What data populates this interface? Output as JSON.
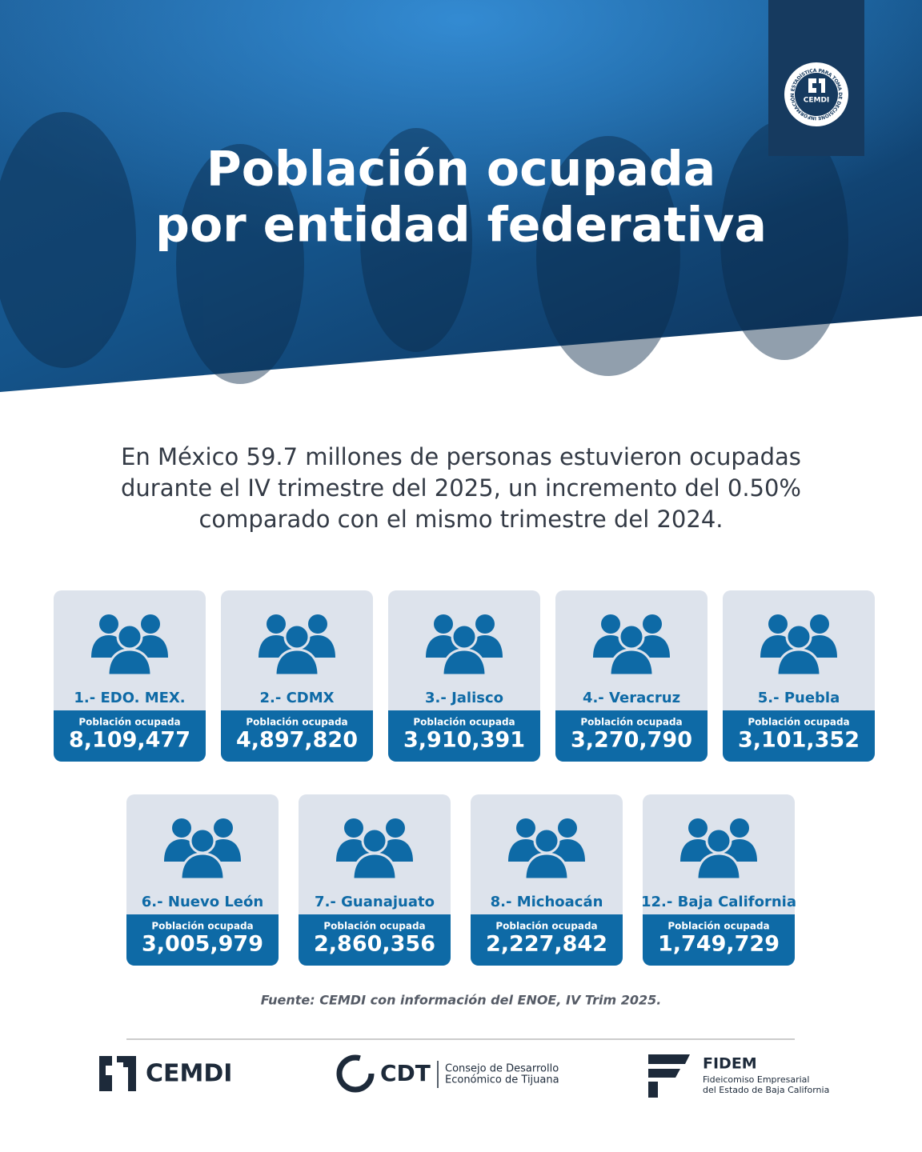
{
  "header": {
    "title_line1": "Población ocupada",
    "title_line2": "por entidad federativa",
    "badge_name": "CEMDI",
    "badge_ring": "INFORMACIÓN ESTADÍSTICA PARA TOMA DE DECISIONES"
  },
  "intro": {
    "line1": "En México 59.7 millones de personas estuvieron ocupadas",
    "line2": "durante el IV trimestre del 2025, un incremento del 0.50%",
    "line3": "comparado con el mismo trimestre del 2024."
  },
  "cards": [
    {
      "label": "1.- EDO. MEX.",
      "caption": "Población ocupada",
      "value": "8,109,477"
    },
    {
      "label": "2.- CDMX",
      "caption": "Población ocupada",
      "value": "4,897,820"
    },
    {
      "label": "3.- Jalisco",
      "caption": "Población ocupada",
      "value": "3,910,391"
    },
    {
      "label": "4.- Veracruz",
      "caption": "Población ocupada",
      "value": "3,270,790"
    },
    {
      "label": "5.- Puebla",
      "caption": "Población ocupada",
      "value": "3,101,352"
    },
    {
      "label": "6.- Nuevo León",
      "caption": "Población ocupada",
      "value": "3,005,979"
    },
    {
      "label": "7.- Guanajuato",
      "caption": "Población ocupada",
      "value": "2,860,356"
    },
    {
      "label": "8.- Michoacán",
      "caption": "Población ocupada",
      "value": "2,227,842"
    },
    {
      "label": "12.- Baja California",
      "caption": "Población ocupada",
      "value": "1,749,729"
    }
  ],
  "source": "Fuente: CEMDI con información del ENOE, IV Trim 2025.",
  "footer": {
    "cemdi": "CEMDI",
    "cdt": "CDT",
    "cdt_name_line1": "Consejo de Desarrollo",
    "cdt_name_line2": "Económico de Tijuana",
    "fidem": "FIDEM",
    "fidem_name_line1": "Fideicomiso Empresarial",
    "fidem_name_line2": "del Estado de Baja California"
  }
}
